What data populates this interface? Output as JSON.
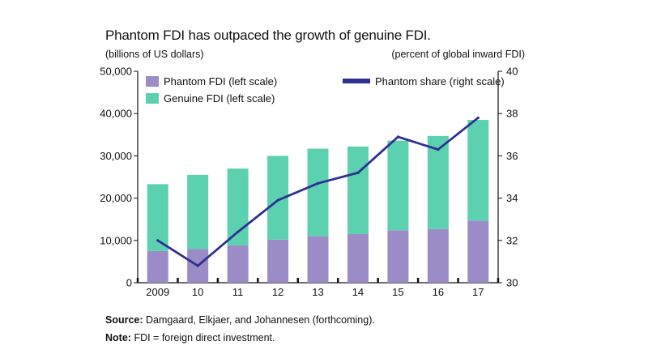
{
  "header": {
    "title": "Phantom FDI has outpaced the growth of genuine FDI.",
    "left_unit": "(billions of US dollars)",
    "right_unit": "(percent of global inward FDI)"
  },
  "footer": {
    "source_label": "Source:",
    "source_text": "Damgaard, Elkjaer, and Johannesen (forthcoming).",
    "note_label": "Note:",
    "note_text": "FDI = foreign direct investment."
  },
  "colors": {
    "phantom": "#9b8cc8",
    "genuine": "#5cd1b0",
    "share_line": "#2e3192",
    "axis": "#111111"
  },
  "chart_data": {
    "type": "bar",
    "stacked": true,
    "categories": [
      "2009",
      "10",
      "11",
      "12",
      "13",
      "14",
      "15",
      "16",
      "17"
    ],
    "series": [
      {
        "name": "Phantom FDI (left scale)",
        "axis": "left",
        "values": [
          7500,
          8000,
          8800,
          10200,
          11000,
          11500,
          12400,
          12700,
          14700
        ]
      },
      {
        "name": "Genuine FDI (left scale)",
        "axis": "left",
        "values": [
          15800,
          17500,
          18200,
          19800,
          20700,
          20700,
          21200,
          22000,
          23800
        ]
      },
      {
        "name": "Phantom share (right scale)",
        "type": "line",
        "axis": "right",
        "values": [
          32.0,
          30.8,
          32.4,
          33.9,
          34.7,
          35.2,
          36.9,
          36.3,
          37.8
        ]
      }
    ],
    "left_axis": {
      "ylim": [
        0,
        50000
      ],
      "ticks": [
        "0",
        "10,000",
        "20,000",
        "30,000",
        "40,000",
        "50,000"
      ]
    },
    "right_axis": {
      "ylim": [
        30,
        40
      ],
      "ticks": [
        "30",
        "32",
        "34",
        "36",
        "38",
        "40"
      ]
    },
    "legend_position": "top",
    "grid": false
  }
}
